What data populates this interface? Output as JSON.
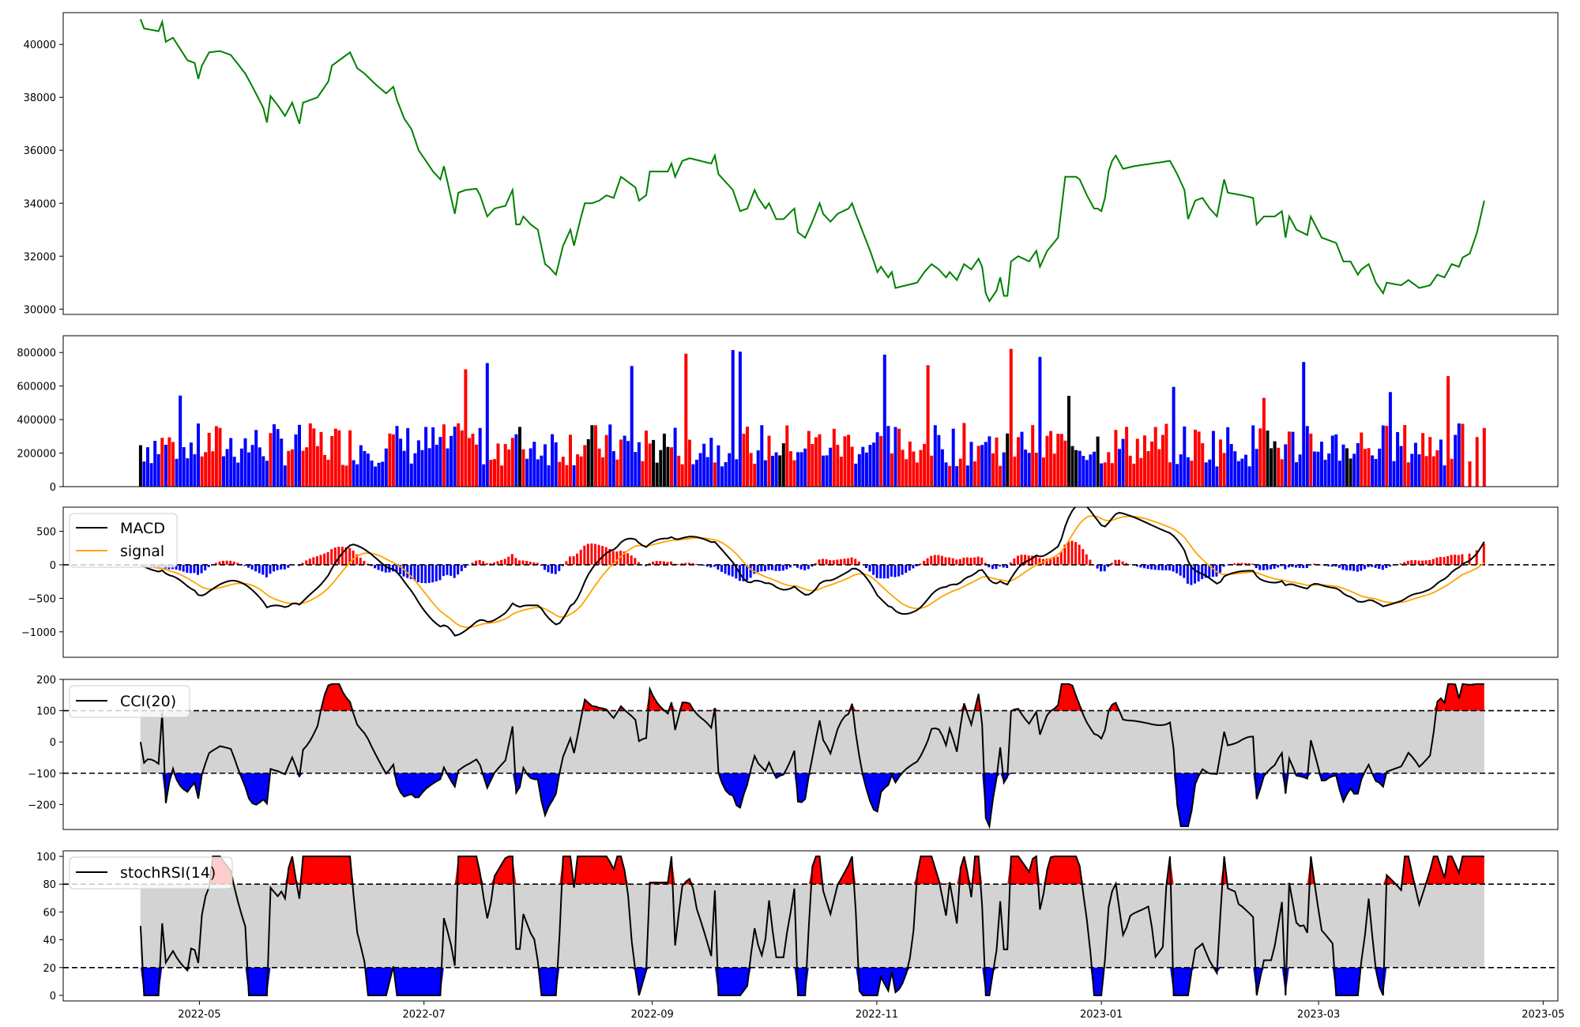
{
  "chart_data": [
    {
      "type": "line",
      "panel": "price",
      "x_axis": {
        "range": [
          "2022-03-25",
          "2023-05-05"
        ]
      },
      "ylim": [
        29800,
        41200
      ],
      "yticks": [
        30000,
        32000,
        34000,
        36000,
        38000,
        40000
      ],
      "ytick_labels": [
        "30000",
        "32000",
        "34000",
        "36000",
        "38000",
        "40000"
      ],
      "color": "#008000",
      "anchors": [
        [
          "2022-04-15",
          40950
        ],
        [
          "2022-04-16",
          40600
        ],
        [
          "2022-04-20",
          40500
        ],
        [
          "2022-04-21",
          40850
        ],
        [
          "2022-04-22",
          40100
        ],
        [
          "2022-04-24",
          40250
        ],
        [
          "2022-04-28",
          39400
        ],
        [
          "2022-04-30",
          39300
        ],
        [
          "2022-05-01",
          38700
        ],
        [
          "2022-05-02",
          39200
        ],
        [
          "2022-05-04",
          39700
        ],
        [
          "2022-05-07",
          39750
        ],
        [
          "2022-05-10",
          39600
        ],
        [
          "2022-05-14",
          38900
        ],
        [
          "2022-05-16",
          38400
        ],
        [
          "2022-05-19",
          37600
        ],
        [
          "2022-05-20",
          37050
        ],
        [
          "2022-05-21",
          38050
        ],
        [
          "2022-05-23",
          37700
        ],
        [
          "2022-05-25",
          37300
        ],
        [
          "2022-05-27",
          37800
        ],
        [
          "2022-05-29",
          37000
        ],
        [
          "2022-05-30",
          37800
        ],
        [
          "2022-06-03",
          38000
        ],
        [
          "2022-06-06",
          38600
        ],
        [
          "2022-06-07",
          39200
        ],
        [
          "2022-06-10",
          39500
        ],
        [
          "2022-06-12",
          39700
        ],
        [
          "2022-06-14",
          39100
        ],
        [
          "2022-06-16",
          38900
        ],
        [
          "2022-06-19",
          38500
        ],
        [
          "2022-06-22",
          38150
        ],
        [
          "2022-06-24",
          38400
        ],
        [
          "2022-06-25",
          37900
        ],
        [
          "2022-06-27",
          37200
        ],
        [
          "2022-06-29",
          36800
        ],
        [
          "2022-07-01",
          36000
        ],
        [
          "2022-07-03",
          35600
        ],
        [
          "2022-07-05",
          35200
        ],
        [
          "2022-07-07",
          34900
        ],
        [
          "2022-07-08",
          35400
        ],
        [
          "2022-07-10",
          34200
        ],
        [
          "2022-07-11",
          33600
        ],
        [
          "2022-07-12",
          34400
        ],
        [
          "2022-07-14",
          34500
        ],
        [
          "2022-07-17",
          34550
        ],
        [
          "2022-07-18",
          34300
        ],
        [
          "2022-07-20",
          33500
        ],
        [
          "2022-07-22",
          33800
        ],
        [
          "2022-07-25",
          33900
        ],
        [
          "2022-07-27",
          34500
        ],
        [
          "2022-07-28",
          33200
        ],
        [
          "2022-07-29",
          33200
        ],
        [
          "2022-07-30",
          33500
        ],
        [
          "2022-08-01",
          33200
        ],
        [
          "2022-08-03",
          33000
        ],
        [
          "2022-08-05",
          31700
        ],
        [
          "2022-08-06",
          31600
        ],
        [
          "2022-08-08",
          31300
        ],
        [
          "2022-08-10",
          32400
        ],
        [
          "2022-08-12",
          33000
        ],
        [
          "2022-08-13",
          32400
        ],
        [
          "2022-08-15",
          33500
        ],
        [
          "2022-08-16",
          34000
        ],
        [
          "2022-08-18",
          34000
        ],
        [
          "2022-08-20",
          34100
        ],
        [
          "2022-08-22",
          34300
        ],
        [
          "2022-08-24",
          34200
        ],
        [
          "2022-08-26",
          35000
        ],
        [
          "2022-08-28",
          34800
        ],
        [
          "2022-08-30",
          34600
        ],
        [
          "2022-08-31",
          34100
        ],
        [
          "2022-09-02",
          34300
        ],
        [
          "2022-09-03",
          35200
        ],
        [
          "2022-09-06",
          35200
        ],
        [
          "2022-09-08",
          35200
        ],
        [
          "2022-09-09",
          35500
        ],
        [
          "2022-09-10",
          35000
        ],
        [
          "2022-09-12",
          35600
        ],
        [
          "2022-09-14",
          35700
        ],
        [
          "2022-09-17",
          35600
        ],
        [
          "2022-09-20",
          35500
        ],
        [
          "2022-09-21",
          35800
        ],
        [
          "2022-09-22",
          35100
        ],
        [
          "2022-09-24",
          34800
        ],
        [
          "2022-09-26",
          34500
        ],
        [
          "2022-09-28",
          33700
        ],
        [
          "2022-09-30",
          33800
        ],
        [
          "2022-10-02",
          34500
        ],
        [
          "2022-10-03",
          34200
        ],
        [
          "2022-10-05",
          33800
        ],
        [
          "2022-10-06",
          34000
        ],
        [
          "2022-10-08",
          33400
        ],
        [
          "2022-10-10",
          33400
        ],
        [
          "2022-10-13",
          33800
        ],
        [
          "2022-10-14",
          32900
        ],
        [
          "2022-10-16",
          32700
        ],
        [
          "2022-10-18",
          33300
        ],
        [
          "2022-10-20",
          34000
        ],
        [
          "2022-10-21",
          33600
        ],
        [
          "2022-10-23",
          33300
        ],
        [
          "2022-10-25",
          33600
        ],
        [
          "2022-10-28",
          33800
        ],
        [
          "2022-10-29",
          34000
        ],
        [
          "2022-10-30",
          33600
        ],
        [
          "2022-11-01",
          32900
        ],
        [
          "2022-11-03",
          32200
        ],
        [
          "2022-11-05",
          31400
        ],
        [
          "2022-11-06",
          31600
        ],
        [
          "2022-11-08",
          31200
        ],
        [
          "2022-11-09",
          31400
        ],
        [
          "2022-11-10",
          30800
        ],
        [
          "2022-11-13",
          30900
        ],
        [
          "2022-11-16",
          31000
        ],
        [
          "2022-11-18",
          31400
        ],
        [
          "2022-11-20",
          31700
        ],
        [
          "2022-11-22",
          31500
        ],
        [
          "2022-11-24",
          31200
        ],
        [
          "2022-11-25",
          31400
        ],
        [
          "2022-11-27",
          31100
        ],
        [
          "2022-11-29",
          31700
        ],
        [
          "2022-12-01",
          31500
        ],
        [
          "2022-12-03",
          31900
        ],
        [
          "2022-12-04",
          31600
        ],
        [
          "2022-12-05",
          30600
        ],
        [
          "2022-12-06",
          30300
        ],
        [
          "2022-12-08",
          30700
        ],
        [
          "2022-12-09",
          31200
        ],
        [
          "2022-12-10",
          30500
        ],
        [
          "2022-12-11",
          30500
        ],
        [
          "2022-12-12",
          31800
        ],
        [
          "2022-12-14",
          32000
        ],
        [
          "2022-12-17",
          31800
        ],
        [
          "2022-12-19",
          32200
        ],
        [
          "2022-12-20",
          31600
        ],
        [
          "2022-12-22",
          32200
        ],
        [
          "2022-12-25",
          32700
        ],
        [
          "2022-12-27",
          35000
        ],
        [
          "2022-12-30",
          35000
        ],
        [
          "2022-12-31",
          34900
        ],
        [
          "2023-01-02",
          34300
        ],
        [
          "2023-01-04",
          33800
        ],
        [
          "2023-01-05",
          33800
        ],
        [
          "2023-01-06",
          33700
        ],
        [
          "2023-01-07",
          34200
        ],
        [
          "2023-01-08",
          35200
        ],
        [
          "2023-01-09",
          35600
        ],
        [
          "2023-01-10",
          35800
        ]
      ]
    },
    {
      "type": "bar",
      "panel": "volume",
      "ylim": [
        0,
        900000
      ],
      "yticks": [
        0,
        200000,
        400000,
        600000,
        800000
      ],
      "ytick_labels": [
        "0",
        "200000",
        "400000",
        "600000",
        "800000"
      ],
      "colors": {
        "up": "#ff0000",
        "down": "#0000ff",
        "flat": "#000000"
      }
    },
    {
      "type": "line",
      "panel": "macd",
      "ylim": [
        -1380,
        860
      ],
      "yticks": [
        -1000,
        -500,
        0,
        500
      ],
      "ytick_labels": [
        "−1000",
        "−500",
        "0",
        "500"
      ],
      "series": [
        {
          "name": "MACD",
          "color": "#000000"
        },
        {
          "name": "signal",
          "color": "#ffa500"
        }
      ],
      "histogram_colors": {
        "positive": "#ff0000",
        "negative": "#0000ff"
      },
      "zero_line": "dashed"
    },
    {
      "type": "area",
      "panel": "cci",
      "ylim": [
        -280,
        200
      ],
      "yticks": [
        -200,
        -100,
        0,
        100,
        200
      ],
      "ytick_labels": [
        "−200",
        "−100",
        "0",
        "100",
        "200"
      ],
      "series": [
        {
          "name": "CCI(20)",
          "color": "#000000"
        }
      ],
      "band": [
        -100,
        100
      ],
      "fill_colors": {
        "band": "#d3d3d3",
        "above": "#ff0000",
        "below": "#0000ff"
      }
    },
    {
      "type": "area",
      "panel": "stochrsi",
      "ylim": [
        -4,
        104
      ],
      "yticks": [
        0,
        20,
        40,
        60,
        80,
        100
      ],
      "ytick_labels": [
        "0",
        "20",
        "40",
        "60",
        "80",
        "100"
      ],
      "series": [
        {
          "name": "stochRSI(14)",
          "color": "#000000"
        }
      ],
      "band": [
        20,
        80
      ],
      "fill_colors": {
        "band": "#d3d3d3",
        "above": "#ff0000",
        "below": "#0000ff"
      }
    }
  ],
  "x_tick_labels": [
    "2022-05",
    "2022-07",
    "2022-09",
    "2022-11",
    "2023-01",
    "2023-03",
    "2023-05"
  ],
  "x_tick_dates": [
    "2022-05-01",
    "2022-07-01",
    "2022-09-01",
    "2022-11-01",
    "2023-01-01",
    "2023-03-01",
    "2023-05-01"
  ]
}
